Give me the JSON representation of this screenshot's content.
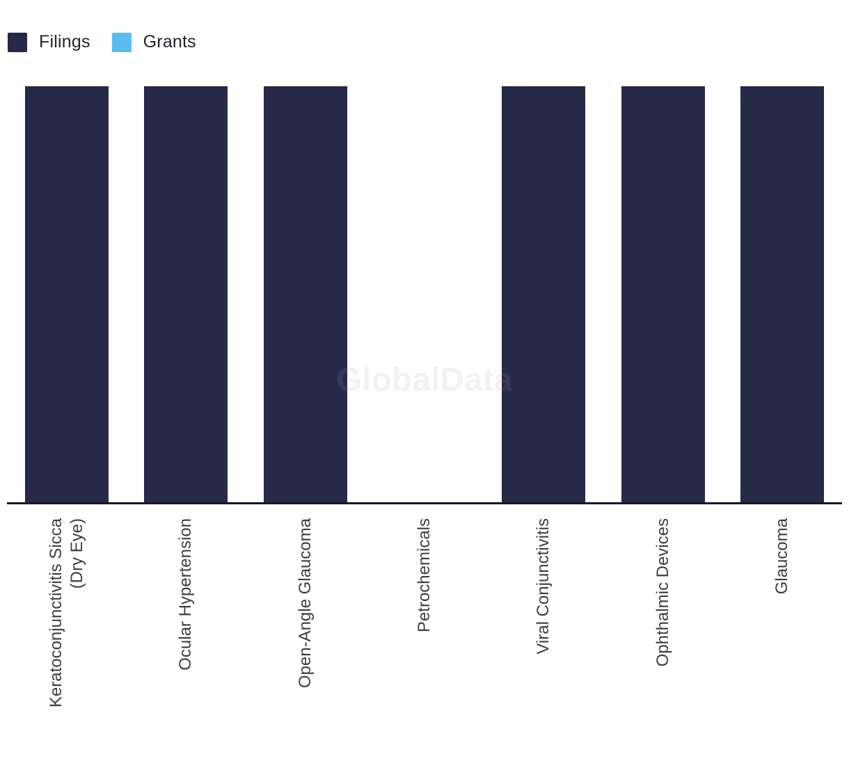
{
  "legend": {
    "items": [
      {
        "label": "Filings",
        "color": "#272949"
      },
      {
        "label": "Grants",
        "color": "#5BBCEE"
      }
    ]
  },
  "watermark": {
    "text": "GlobalData"
  },
  "chart_data": {
    "type": "bar",
    "categories": [
      "Keratoconjunctivitis Sicca\n(Dry Eye)",
      "Ocular Hypertension",
      "Open-Angle Glaucoma",
      "Petrochemicals",
      "Viral Conjunctivitis",
      "Ophthalmic Devices",
      "Glaucoma"
    ],
    "series": [
      {
        "name": "Filings",
        "color": "#272949",
        "values": [
          1,
          1,
          1,
          0,
          1,
          1,
          1
        ]
      },
      {
        "name": "Grants",
        "color": "#5BBCEE",
        "values": [
          0,
          0,
          0,
          0,
          0,
          0,
          0
        ]
      }
    ],
    "title": "",
    "xlabel": "",
    "ylabel": "",
    "ylim": [
      0,
      1
    ],
    "grid": false,
    "y_axis_visible": false,
    "x_label_rotation": -90,
    "legend_position": "top-left",
    "watermark": "GlobalData"
  }
}
